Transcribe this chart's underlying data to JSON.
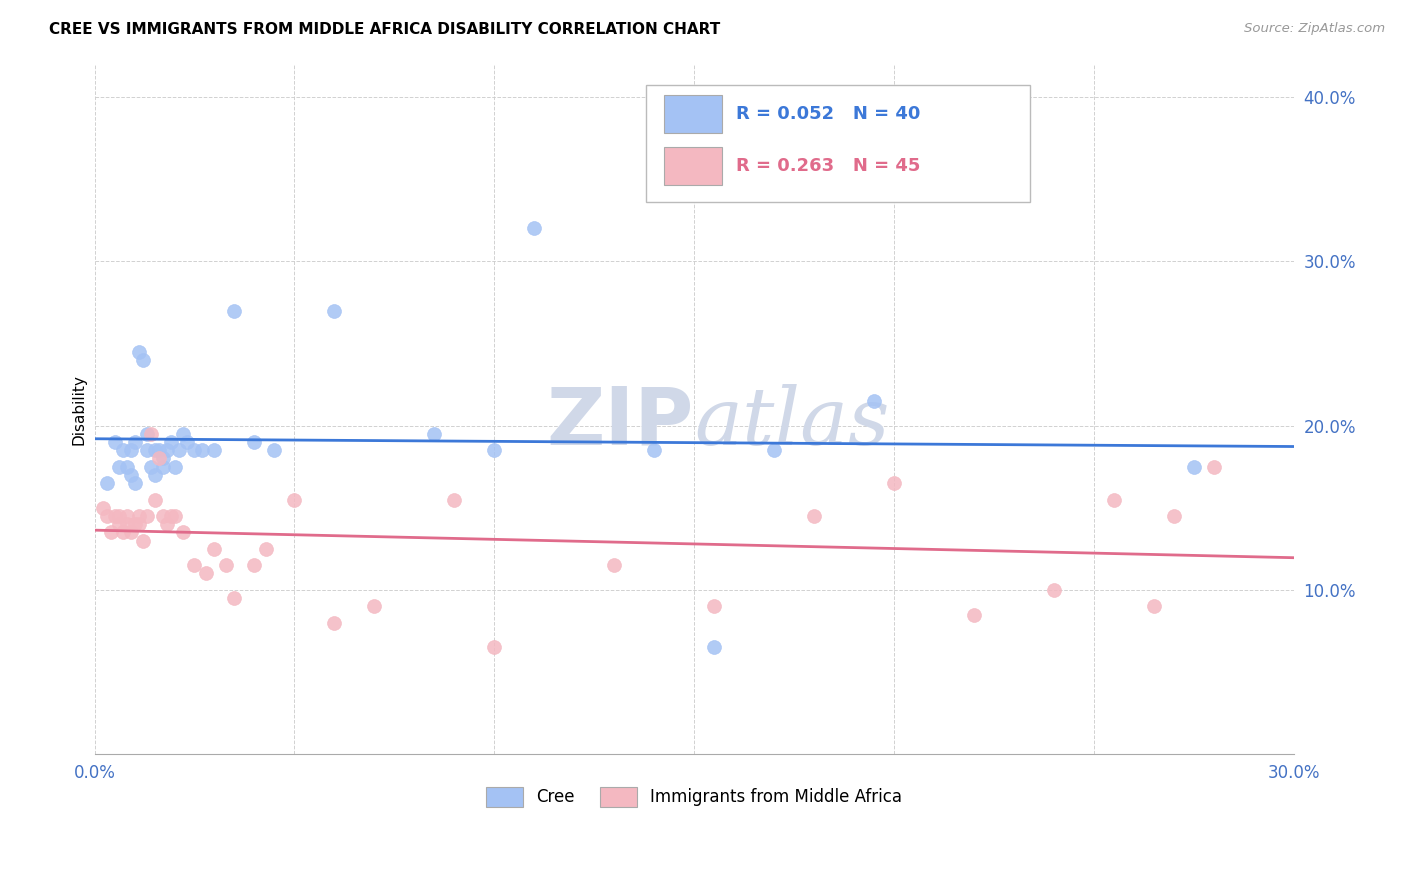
{
  "title": "CREE VS IMMIGRANTS FROM MIDDLE AFRICA DISABILITY CORRELATION CHART",
  "source": "Source: ZipAtlas.com",
  "ylabel_label": "Disability",
  "xlim": [
    0.0,
    0.3
  ],
  "ylim": [
    0.0,
    0.42
  ],
  "x_ticks": [
    0.0,
    0.05,
    0.1,
    0.15,
    0.2,
    0.25,
    0.3
  ],
  "y_ticks": [
    0.0,
    0.1,
    0.2,
    0.3,
    0.4
  ],
  "cree_R": 0.052,
  "cree_N": 40,
  "immig_R": 0.263,
  "immig_N": 45,
  "cree_color": "#a4c2f4",
  "immig_color": "#f4b8c1",
  "cree_line_color": "#3c78d8",
  "immig_line_color": "#e06b8b",
  "tick_color": "#4472c4",
  "watermark_color": "#d0d8e8",
  "cree_x": [
    0.003,
    0.005,
    0.006,
    0.007,
    0.008,
    0.009,
    0.009,
    0.01,
    0.01,
    0.011,
    0.012,
    0.013,
    0.013,
    0.014,
    0.015,
    0.015,
    0.016,
    0.017,
    0.017,
    0.018,
    0.019,
    0.02,
    0.021,
    0.022,
    0.023,
    0.025,
    0.027,
    0.03,
    0.035,
    0.04,
    0.045,
    0.06,
    0.085,
    0.1,
    0.11,
    0.14,
    0.155,
    0.17,
    0.195,
    0.275
  ],
  "cree_y": [
    0.165,
    0.19,
    0.175,
    0.185,
    0.175,
    0.17,
    0.185,
    0.165,
    0.19,
    0.245,
    0.24,
    0.185,
    0.195,
    0.175,
    0.17,
    0.185,
    0.185,
    0.175,
    0.18,
    0.185,
    0.19,
    0.175,
    0.185,
    0.195,
    0.19,
    0.185,
    0.185,
    0.185,
    0.27,
    0.19,
    0.185,
    0.27,
    0.195,
    0.185,
    0.32,
    0.185,
    0.065,
    0.185,
    0.215,
    0.175
  ],
  "immig_x": [
    0.002,
    0.003,
    0.004,
    0.005,
    0.006,
    0.006,
    0.007,
    0.008,
    0.008,
    0.009,
    0.01,
    0.011,
    0.011,
    0.012,
    0.013,
    0.014,
    0.015,
    0.016,
    0.017,
    0.018,
    0.019,
    0.02,
    0.022,
    0.025,
    0.028,
    0.03,
    0.033,
    0.035,
    0.04,
    0.043,
    0.05,
    0.06,
    0.07,
    0.09,
    0.1,
    0.13,
    0.155,
    0.18,
    0.2,
    0.22,
    0.24,
    0.255,
    0.265,
    0.27,
    0.28
  ],
  "immig_y": [
    0.15,
    0.145,
    0.135,
    0.145,
    0.14,
    0.145,
    0.135,
    0.145,
    0.14,
    0.135,
    0.14,
    0.145,
    0.14,
    0.13,
    0.145,
    0.195,
    0.155,
    0.18,
    0.145,
    0.14,
    0.145,
    0.145,
    0.135,
    0.115,
    0.11,
    0.125,
    0.115,
    0.095,
    0.115,
    0.125,
    0.155,
    0.08,
    0.09,
    0.155,
    0.065,
    0.115,
    0.09,
    0.145,
    0.165,
    0.085,
    0.1,
    0.155,
    0.09,
    0.145,
    0.175
  ]
}
